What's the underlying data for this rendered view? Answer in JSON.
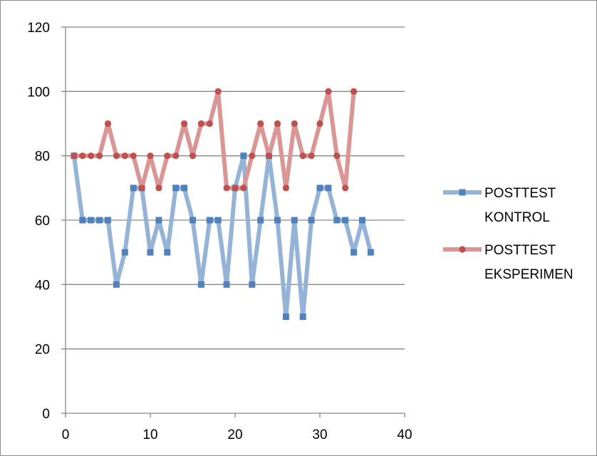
{
  "chart_data": {
    "type": "line",
    "title": "",
    "xlabel": "",
    "ylabel": "",
    "xlim": [
      0,
      40
    ],
    "ylim": [
      0,
      120
    ],
    "x_ticks": [
      "0",
      "10",
      "20",
      "30",
      "40"
    ],
    "y_ticks": [
      "0",
      "20",
      "40",
      "60",
      "80",
      "100",
      "120"
    ],
    "grid": "horizontal",
    "legend_position": "right",
    "series": [
      {
        "name_lines": [
          "POSTTEST",
          "KONTROL"
        ],
        "color": "#95b3d7",
        "marker_color": "#4f81bd",
        "marker": "square",
        "x": [
          1,
          2,
          3,
          4,
          5,
          6,
          7,
          8,
          9,
          10,
          11,
          12,
          13,
          14,
          15,
          16,
          17,
          18,
          19,
          20,
          21,
          22,
          23,
          24,
          25,
          26,
          27,
          28,
          29,
          30,
          31,
          32,
          33,
          34,
          35,
          36
        ],
        "values": [
          80,
          60,
          60,
          60,
          60,
          40,
          50,
          70,
          70,
          50,
          60,
          50,
          70,
          70,
          60,
          40,
          60,
          60,
          40,
          70,
          80,
          40,
          60,
          80,
          60,
          30,
          60,
          30,
          60,
          70,
          70,
          60,
          60,
          50,
          60,
          50
        ]
      },
      {
        "name_lines": [
          "POSTTEST",
          "EKSPERIMEN"
        ],
        "color": "#d99694",
        "marker_color": "#c0504d",
        "marker": "circle",
        "x": [
          1,
          2,
          3,
          4,
          5,
          6,
          7,
          8,
          9,
          10,
          11,
          12,
          13,
          14,
          15,
          16,
          17,
          18,
          19,
          20,
          21,
          22,
          23,
          24,
          25,
          26,
          27,
          28,
          29,
          30,
          31,
          32,
          33,
          34
        ],
        "values": [
          80,
          80,
          80,
          80,
          90,
          80,
          80,
          80,
          70,
          80,
          70,
          80,
          80,
          90,
          80,
          90,
          90,
          100,
          70,
          70,
          70,
          80,
          90,
          80,
          90,
          70,
          90,
          80,
          80,
          90,
          100,
          80,
          70,
          100
        ]
      }
    ]
  }
}
